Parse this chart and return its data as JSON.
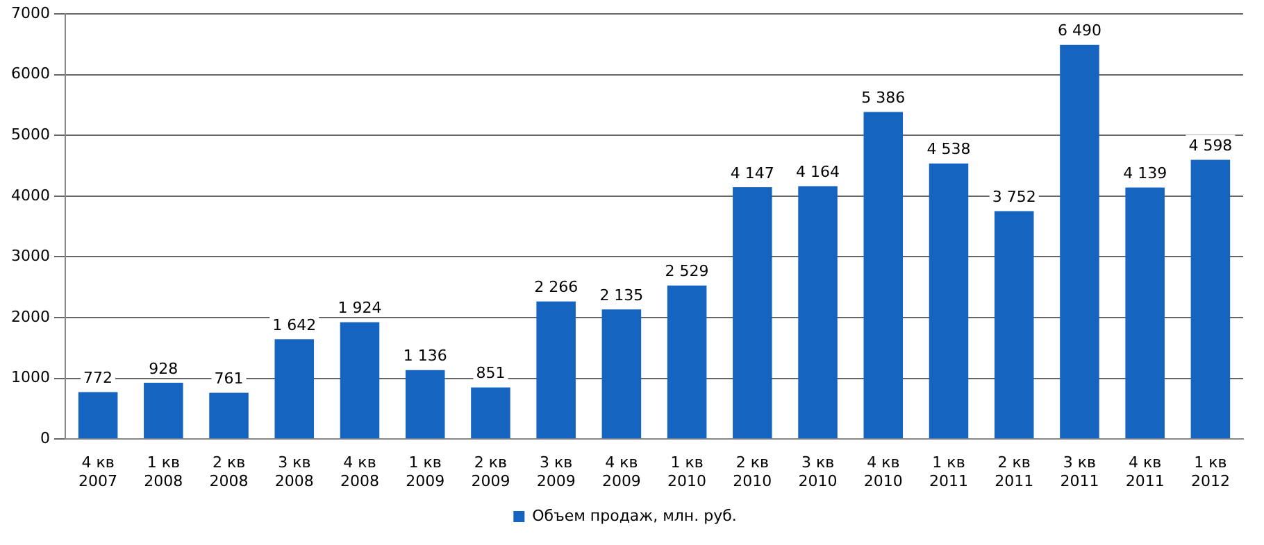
{
  "chart_data": {
    "type": "bar",
    "categories": [
      "4 кв\n2007",
      "1 кв\n2008",
      "2 кв\n2008",
      "3 кв\n2008",
      "4 кв\n2008",
      "1 кв\n2009",
      "2 кв\n2009",
      "3 кв\n2009",
      "4 кв\n2009",
      "1 кв\n2010",
      "2 кв\n2010",
      "3 кв\n2010",
      "4 кв\n2010",
      "1 кв\n2011",
      "2 кв\n2011",
      "3 кв\n2011",
      "4 кв\n2011",
      "1 кв\n2012"
    ],
    "series": [
      {
        "name": "Объем продаж, млн. руб.",
        "color": "#1565c0",
        "values": [
          772,
          928,
          761,
          1642,
          1924,
          1136,
          851,
          2266,
          2135,
          2529,
          4147,
          4164,
          5386,
          4538,
          3752,
          6490,
          4139,
          4598
        ],
        "value_labels": [
          "772",
          "928",
          "761",
          "1 642",
          "1 924",
          "1 136",
          "851",
          "2 266",
          "2 135",
          "2 529",
          "4 147",
          "4 164",
          "5 386",
          "4 538",
          "3 752",
          "6 490",
          "4 139",
          "4 598"
        ]
      }
    ],
    "ylim": [
      0,
      7000
    ],
    "yticks": [
      0,
      1000,
      2000,
      3000,
      4000,
      5000,
      6000,
      7000
    ],
    "grid": "y",
    "legend": "bottom"
  }
}
